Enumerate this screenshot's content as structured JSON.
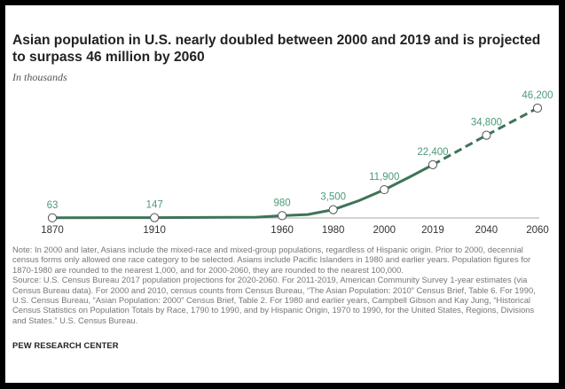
{
  "title": "Asian population in U.S. nearly doubled between 2000 and 2019 and is projected to surpass 46 million by 2060",
  "subtitle": "In thousands",
  "note": "Note: In 2000 and later, Asians include the mixed-race and mixed-group populations, regardless of Hispanic origin. Prior to 2000, decennial census forms only allowed one race category to be selected. Asians include Pacific Islanders in 1980 and earlier years. Population figures for 1870-1980 are rounded to the nearest 1,000, and for 2000-2060, they are rounded to the nearest 100,000.",
  "source": "Source: U.S. Census Bureau 2017 population projections for 2020-2060. For 2011-2019, American Community Survey 1-year estimates (via Census Bureau data). For 2000 and 2010, census counts from Census Bureau, “The Asian Population: 2010” Census Brief, Table 6. For 1990, U.S. Census Bureau, “Asian Population: 2000” Census Brief, Table 2. For 1980 and earlier years, Campbell Gibson and Kay Jung, “Historical Census Statistics on Population Totals by Race, 1790 to 1990, and by Hispanic Origin, 1970 to 1990, for the United States, Regions, Divisions and States.” U.S. Census Bureau.",
  "footer": "PEW RESEARCH CENTER",
  "colors": {
    "line": "#3e7458",
    "label": "#4b9a78",
    "axis": "#aaaaaa",
    "tick_text": "#333333"
  },
  "chart_data": {
    "type": "line",
    "title": "Asian population in U.S. nearly doubled between 2000 and 2019 and is projected to surpass 46 million by 2060",
    "ylabel": "In thousands",
    "xlim": [
      1870,
      2060
    ],
    "ylim": [
      0,
      46200
    ],
    "grid": false,
    "x_ticks": [
      1870,
      1910,
      1960,
      1980,
      2000,
      2019,
      2040,
      2060
    ],
    "series": [
      {
        "style": "solid",
        "x": [
          1870,
          1910,
          1950,
          1960,
          1970,
          1980,
          1990,
          2000,
          2010,
          2019
        ],
        "y": [
          63,
          147,
          321,
          980,
          1439,
          3500,
          7274,
          11900,
          17300,
          22400
        ]
      },
      {
        "style": "dashed",
        "x": [
          2019,
          2040,
          2060
        ],
        "y": [
          22400,
          34800,
          46200
        ]
      }
    ],
    "markers": [
      {
        "x": 1870,
        "y": 63,
        "label": "63"
      },
      {
        "x": 1910,
        "y": 147,
        "label": "147"
      },
      {
        "x": 1960,
        "y": 980,
        "label": "980"
      },
      {
        "x": 1980,
        "y": 3500,
        "label": "3,500"
      },
      {
        "x": 2000,
        "y": 11900,
        "label": "11,900"
      },
      {
        "x": 2019,
        "y": 22400,
        "label": "22,400"
      },
      {
        "x": 2040,
        "y": 34800,
        "label": "34,800"
      },
      {
        "x": 2060,
        "y": 46200,
        "label": "46,200"
      }
    ]
  }
}
